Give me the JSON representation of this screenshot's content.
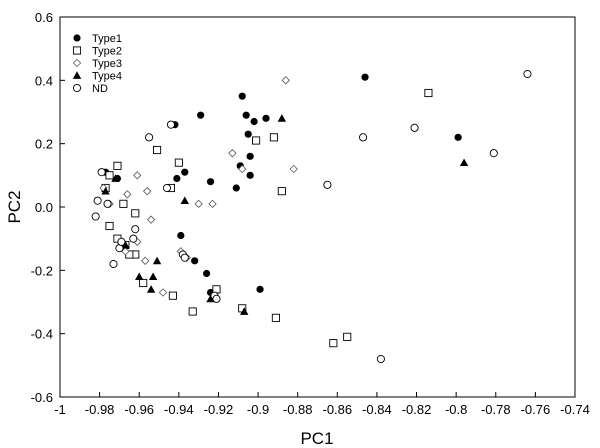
{
  "chart_data": {
    "type": "scatter",
    "title": "",
    "xlabel": "PC1",
    "ylabel": "PC2",
    "xlim": [
      -1.0,
      -0.74
    ],
    "ylim": [
      -0.6,
      0.6
    ],
    "xticks": [
      -1,
      -0.98,
      -0.96,
      -0.94,
      -0.92,
      -0.9,
      -0.88,
      -0.86,
      -0.84,
      -0.82,
      -0.8,
      -0.78,
      -0.76,
      -0.74
    ],
    "xtick_labels": [
      "-1",
      "-0.98",
      "-0.96",
      "-0.94",
      "-0.92",
      "-0.9",
      "-0.88",
      "-0.86",
      "-0.84",
      "-0.82",
      "-0.8",
      "-0.78",
      "-0.76",
      "-0.74"
    ],
    "yticks": [
      -0.6,
      -0.4,
      -0.2,
      0.0,
      0.2,
      0.4,
      0.6
    ],
    "ytick_labels": [
      "-0.6",
      "-0.4",
      "-0.2",
      "0.0",
      "0.2",
      "0.4",
      "0.6"
    ],
    "grid": false,
    "legend_position": "top-left",
    "series": [
      {
        "name": "Type1",
        "marker": "circle-filled",
        "points": [
          [
            -0.977,
            0.11
          ],
          [
            -0.971,
            0.09
          ],
          [
            -0.951,
            0.18
          ],
          [
            -0.942,
            0.26
          ],
          [
            -0.941,
            0.09
          ],
          [
            -0.937,
            0.11
          ],
          [
            -0.929,
            0.29
          ],
          [
            -0.924,
            0.08
          ],
          [
            -0.908,
            0.35
          ],
          [
            -0.906,
            0.29
          ],
          [
            -0.905,
            0.23
          ],
          [
            -0.904,
            0.16
          ],
          [
            -0.904,
            0.1
          ],
          [
            -0.902,
            0.27
          ],
          [
            -0.896,
            0.28
          ],
          [
            -0.909,
            0.13
          ],
          [
            -0.911,
            0.06
          ],
          [
            -0.939,
            -0.09
          ],
          [
            -0.932,
            -0.17
          ],
          [
            -0.926,
            -0.21
          ],
          [
            -0.924,
            -0.27
          ],
          [
            -0.899,
            -0.26
          ],
          [
            -0.846,
            0.41
          ],
          [
            -0.799,
            0.22
          ]
        ]
      },
      {
        "name": "Type2",
        "marker": "square-open",
        "points": [
          [
            -0.977,
            0.06
          ],
          [
            -0.975,
            0.1
          ],
          [
            -0.971,
            0.13
          ],
          [
            -0.968,
            0.01
          ],
          [
            -0.962,
            -0.02
          ],
          [
            -0.967,
            -0.12
          ],
          [
            -0.962,
            -0.15
          ],
          [
            -0.951,
            0.18
          ],
          [
            -0.944,
            0.06
          ],
          [
            -0.94,
            0.14
          ],
          [
            -0.975,
            -0.06
          ],
          [
            -0.971,
            -0.1
          ],
          [
            -0.965,
            -0.15
          ],
          [
            -0.958,
            -0.24
          ],
          [
            -0.943,
            -0.28
          ],
          [
            -0.933,
            -0.33
          ],
          [
            -0.921,
            -0.26
          ],
          [
            -0.908,
            -0.32
          ],
          [
            -0.901,
            0.21
          ],
          [
            -0.892,
            0.22
          ],
          [
            -0.888,
            0.05
          ],
          [
            -0.891,
            -0.35
          ],
          [
            -0.862,
            -0.43
          ],
          [
            -0.855,
            -0.41
          ],
          [
            -0.814,
            0.36
          ]
        ]
      },
      {
        "name": "Type3",
        "marker": "diamond-open",
        "points": [
          [
            -0.978,
            0.06
          ],
          [
            -0.975,
            0.01
          ],
          [
            -0.966,
            0.04
          ],
          [
            -0.961,
            0.1
          ],
          [
            -0.956,
            0.05
          ],
          [
            -0.954,
            -0.04
          ],
          [
            -0.967,
            -0.14
          ],
          [
            -0.961,
            -0.11
          ],
          [
            -0.957,
            -0.17
          ],
          [
            -0.948,
            -0.27
          ],
          [
            -0.939,
            -0.14
          ],
          [
            -0.936,
            -0.16
          ],
          [
            -0.93,
            0.01
          ],
          [
            -0.923,
            0.01
          ],
          [
            -0.913,
            0.17
          ],
          [
            -0.908,
            0.12
          ],
          [
            -0.886,
            0.4
          ],
          [
            -0.882,
            0.12
          ]
        ]
      },
      {
        "name": "Type4",
        "marker": "triangle-filled",
        "points": [
          [
            -0.977,
            0.05
          ],
          [
            -0.972,
            0.09
          ],
          [
            -0.967,
            -0.12
          ],
          [
            -0.96,
            -0.22
          ],
          [
            -0.954,
            -0.26
          ],
          [
            -0.953,
            -0.22
          ],
          [
            -0.951,
            -0.17
          ],
          [
            -0.937,
            0.02
          ],
          [
            -0.924,
            -0.29
          ],
          [
            -0.907,
            -0.33
          ],
          [
            -0.888,
            0.28
          ],
          [
            -0.796,
            0.14
          ]
        ]
      },
      {
        "name": "ND",
        "marker": "circle-open",
        "points": [
          [
            -0.981,
            0.02
          ],
          [
            -0.982,
            -0.03
          ],
          [
            -0.979,
            0.11
          ],
          [
            -0.976,
            0.01
          ],
          [
            -0.973,
            -0.18
          ],
          [
            -0.97,
            -0.13
          ],
          [
            -0.969,
            -0.11
          ],
          [
            -0.963,
            -0.1
          ],
          [
            -0.962,
            -0.07
          ],
          [
            -0.955,
            0.22
          ],
          [
            -0.946,
            0.06
          ],
          [
            -0.944,
            0.26
          ],
          [
            -0.938,
            -0.15
          ],
          [
            -0.937,
            -0.16
          ],
          [
            -0.922,
            -0.28
          ],
          [
            -0.921,
            -0.29
          ],
          [
            -0.865,
            0.07
          ],
          [
            -0.847,
            0.22
          ],
          [
            -0.838,
            -0.48
          ],
          [
            -0.821,
            0.25
          ],
          [
            -0.781,
            0.17
          ],
          [
            -0.764,
            0.42
          ]
        ]
      }
    ]
  }
}
